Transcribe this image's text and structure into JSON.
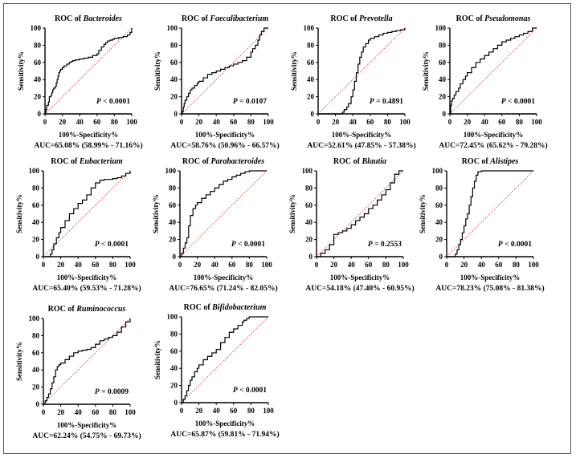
{
  "colors": {
    "curve": "#000000",
    "reference": "#e03030",
    "axis": "#000000",
    "frame": "#555555"
  },
  "chart_data": [
    {
      "type": "line",
      "title_prefix": "ROC of ",
      "title_name": "Bacteroides",
      "xlabel": "100%-Specificity%",
      "ylabel": "Sensitivity%",
      "xlim": [
        0,
        100
      ],
      "ylim": [
        0,
        100
      ],
      "xticks": [
        "0",
        "20",
        "40",
        "60",
        "80",
        "100"
      ],
      "yticks": [
        "0",
        "20",
        "40",
        "60",
        "80",
        "100"
      ],
      "p_prefix": "P",
      "p_value": " < 0.0001",
      "auc": "AUC=65.08% (58.99% - 71.16%)",
      "x": [
        0,
        1,
        2,
        2,
        4,
        5,
        7,
        8,
        9,
        10,
        12,
        13,
        14,
        15,
        16,
        17,
        18,
        20,
        22,
        25,
        28,
        30,
        32,
        35,
        40,
        45,
        50,
        55,
        60,
        62,
        65,
        68,
        70,
        72,
        75,
        78,
        80,
        85,
        90,
        95,
        98,
        100,
        100
      ],
      "y": [
        0,
        5,
        5,
        10,
        14,
        20,
        22,
        25,
        28,
        30,
        32,
        36,
        40,
        44,
        48,
        50,
        52,
        54,
        56,
        58,
        60,
        61,
        62,
        63,
        64,
        65,
        66,
        68,
        70,
        74,
        78,
        81,
        83,
        85,
        86,
        87,
        88,
        89,
        90,
        92,
        95,
        96,
        100
      ],
      "reference_line": [
        [
          0,
          0
        ],
        [
          100,
          100
        ]
      ]
    },
    {
      "type": "line",
      "title_prefix": "ROC of ",
      "title_name": "Faecalibacterium",
      "xlabel": "100%-Specificity%",
      "ylabel": "Sensitivity%",
      "xlim": [
        0,
        100
      ],
      "ylim": [
        0,
        100
      ],
      "xticks": [
        "0",
        "20",
        "40",
        "60",
        "80",
        "100"
      ],
      "yticks": [
        "0",
        "20",
        "40",
        "60",
        "80",
        "100"
      ],
      "p_prefix": "P",
      "p_value": " = 0.0107",
      "auc": "AUC=58.76% (50.96% - 66.57%)",
      "x": [
        0,
        1,
        2,
        3,
        4,
        6,
        8,
        10,
        12,
        15,
        18,
        20,
        25,
        30,
        35,
        40,
        45,
        50,
        55,
        60,
        65,
        70,
        75,
        80,
        82,
        85,
        88,
        90,
        92,
        95,
        100
      ],
      "y": [
        0,
        3,
        8,
        12,
        16,
        20,
        24,
        28,
        30,
        33,
        36,
        38,
        42,
        46,
        48,
        50,
        52,
        54,
        56,
        58,
        60,
        62,
        66,
        72,
        76,
        80,
        86,
        92,
        96,
        100,
        100
      ],
      "reference_line": [
        [
          0,
          0
        ],
        [
          100,
          100
        ]
      ]
    },
    {
      "type": "line",
      "title_prefix": "ROC of ",
      "title_name": "Prevotella",
      "xlabel": "100%-Specificity%",
      "ylabel": "Sensitivity%",
      "xlim": [
        0,
        100
      ],
      "ylim": [
        0,
        100
      ],
      "xticks": [
        "0",
        "20",
        "40",
        "60",
        "80",
        "100"
      ],
      "yticks": [
        "0",
        "20",
        "40",
        "60",
        "80",
        "100"
      ],
      "p_prefix": "P",
      "p_value": " = 0.4891",
      "auc": "AUC=52.61% (47.85% - 57.38%)",
      "x": [
        0,
        10,
        20,
        25,
        28,
        30,
        33,
        35,
        38,
        40,
        42,
        44,
        46,
        48,
        50,
        52,
        55,
        58,
        60,
        65,
        70,
        75,
        80,
        85,
        90,
        95,
        100
      ],
      "y": [
        0,
        0,
        0,
        0,
        2,
        5,
        8,
        12,
        20,
        28,
        38,
        48,
        58,
        66,
        72,
        78,
        82,
        86,
        88,
        90,
        92,
        94,
        95,
        96,
        97,
        98,
        100
      ],
      "reference_line": [
        [
          0,
          0
        ],
        [
          100,
          100
        ]
      ]
    },
    {
      "type": "line",
      "title_prefix": "ROC of ",
      "title_name": "Pseudomonas",
      "xlabel": "100%-Specificity%",
      "ylabel": "Sensitivity%",
      "xlim": [
        0,
        100
      ],
      "ylim": [
        0,
        100
      ],
      "xticks": [
        "0",
        "20",
        "40",
        "60",
        "80",
        "100"
      ],
      "yticks": [
        "0",
        "20",
        "40",
        "60",
        "80",
        "100"
      ],
      "p_prefix": "P",
      "p_value": " < 0.0001",
      "auc": "AUC=72.45% (65.62% - 79.28%)",
      "x": [
        0,
        1,
        2,
        3,
        5,
        7,
        10,
        12,
        15,
        18,
        20,
        25,
        30,
        35,
        40,
        45,
        50,
        55,
        60,
        65,
        70,
        75,
        80,
        85,
        90,
        95,
        100
      ],
      "y": [
        0,
        10,
        15,
        18,
        22,
        26,
        30,
        35,
        40,
        44,
        48,
        54,
        60,
        64,
        68,
        72,
        76,
        80,
        84,
        86,
        88,
        90,
        92,
        94,
        96,
        100,
        100
      ],
      "reference_line": [
        [
          0,
          0
        ],
        [
          100,
          100
        ]
      ]
    },
    {
      "type": "line",
      "title_prefix": "ROC of ",
      "title_name": "Eubacterium",
      "xlabel": "100%-Specificity%",
      "ylabel": "Sensitivity%",
      "xlim": [
        0,
        100
      ],
      "ylim": [
        0,
        100
      ],
      "xticks": [
        "0",
        "20",
        "40",
        "60",
        "80",
        "100"
      ],
      "yticks": [
        "0",
        "20",
        "40",
        "60",
        "80",
        "100"
      ],
      "p_prefix": "P",
      "p_value": " < 0.0001",
      "auc": "AUC=65.40% (59.53% - 71.28%)",
      "x": [
        0,
        5,
        8,
        10,
        12,
        15,
        18,
        20,
        25,
        30,
        35,
        40,
        45,
        50,
        55,
        60,
        65,
        70,
        75,
        80,
        85,
        90,
        95,
        100
      ],
      "y": [
        0,
        0,
        3,
        8,
        15,
        22,
        28,
        34,
        42,
        50,
        56,
        62,
        66,
        72,
        80,
        86,
        89,
        90,
        90,
        91,
        92,
        94,
        97,
        100
      ],
      "reference_line": [
        [
          0,
          0
        ],
        [
          100,
          100
        ]
      ]
    },
    {
      "type": "line",
      "title_prefix": "ROC of ",
      "title_name": "Parabacteroides",
      "xlabel": "100%-Specificity%",
      "ylabel": "Sensitivity%",
      "xlim": [
        0,
        100
      ],
      "ylim": [
        0,
        100
      ],
      "xticks": [
        "0",
        "20",
        "40",
        "60",
        "80",
        "100"
      ],
      "yticks": [
        "0",
        "20",
        "40",
        "60",
        "80",
        "100"
      ],
      "p_prefix": "P",
      "p_value": " < 0.0001",
      "auc": "AUC=76.65% (71.24% - 82.05%)",
      "x": [
        0,
        2,
        4,
        6,
        8,
        10,
        12,
        15,
        18,
        20,
        25,
        30,
        35,
        40,
        45,
        50,
        55,
        60,
        65,
        70,
        75,
        80,
        85,
        90,
        100
      ],
      "y": [
        0,
        4,
        10,
        16,
        22,
        36,
        48,
        56,
        60,
        63,
        68,
        72,
        76,
        80,
        84,
        88,
        90,
        93,
        95,
        97,
        99,
        100,
        100,
        100,
        100
      ],
      "reference_line": [
        [
          0,
          0
        ],
        [
          100,
          100
        ]
      ]
    },
    {
      "type": "line",
      "title_prefix": "ROC of ",
      "title_name": "Blautia",
      "xlabel": "100%-Specificity%",
      "ylabel": "Sensitivity%",
      "xlim": [
        0,
        100
      ],
      "ylim": [
        0,
        100
      ],
      "xticks": [
        "0",
        "20",
        "40",
        "60",
        "80",
        "100"
      ],
      "yticks": [
        "0",
        "20",
        "40",
        "60",
        "80",
        "100"
      ],
      "p_prefix": "P",
      "p_value": " = 0.2553",
      "auc": "AUC=54.18% (47.40% - 60.95%)",
      "x": [
        0,
        5,
        10,
        15,
        20,
        25,
        30,
        35,
        40,
        45,
        50,
        55,
        60,
        65,
        70,
        75,
        80,
        85,
        90,
        95,
        100
      ],
      "y": [
        0,
        4,
        8,
        14,
        26,
        28,
        30,
        33,
        37,
        42,
        46,
        50,
        56,
        60,
        66,
        72,
        78,
        86,
        96,
        100,
        100
      ],
      "reference_line": [
        [
          0,
          0
        ],
        [
          100,
          100
        ]
      ]
    },
    {
      "type": "line",
      "title_prefix": "ROC of ",
      "title_name": "Alistipes",
      "xlabel": "100%-Specificity%",
      "ylabel": "Sensitivity%",
      "xlim": [
        0,
        100
      ],
      "ylim": [
        0,
        100
      ],
      "xticks": [
        "0",
        "20",
        "40",
        "60",
        "80",
        "100"
      ],
      "yticks": [
        "0",
        "20",
        "40",
        "60",
        "80",
        "100"
      ],
      "p_prefix": "P",
      "p_value": " < 0.0001",
      "auc": "AUC=78.23% (75.08% - 81.38%)",
      "x": [
        0,
        8,
        10,
        12,
        14,
        16,
        18,
        20,
        22,
        24,
        26,
        28,
        30,
        32,
        34,
        36,
        40,
        60,
        80,
        100
      ],
      "y": [
        0,
        0,
        3,
        8,
        14,
        20,
        28,
        36,
        44,
        50,
        60,
        70,
        80,
        88,
        95,
        99,
        100,
        100,
        100,
        100
      ],
      "reference_line": [
        [
          0,
          0
        ],
        [
          100,
          100
        ]
      ]
    },
    {
      "type": "line",
      "title_prefix": "ROC of ",
      "title_name": "Ruminococcus",
      "xlabel": "100%-Specificity%",
      "ylabel": "Sensitivity%",
      "xlim": [
        0,
        100
      ],
      "ylim": [
        0,
        100
      ],
      "xticks": [
        "0",
        "20",
        "40",
        "60",
        "80",
        "100"
      ],
      "yticks": [
        "0",
        "20",
        "40",
        "60",
        "80",
        "100"
      ],
      "p_prefix": "P",
      "p_value": " = 0.0009",
      "auc": "AUC=62.24% (54.75% - 69.73%)",
      "x": [
        0,
        2,
        4,
        6,
        8,
        10,
        12,
        14,
        16,
        18,
        20,
        25,
        30,
        35,
        40,
        45,
        50,
        55,
        60,
        65,
        70,
        75,
        80,
        85,
        90,
        95,
        100
      ],
      "y": [
        0,
        4,
        8,
        12,
        18,
        25,
        32,
        40,
        44,
        46,
        48,
        52,
        56,
        60,
        62,
        63,
        64,
        66,
        70,
        74,
        76,
        78,
        80,
        84,
        90,
        96,
        100
      ],
      "reference_line": [
        [
          0,
          0
        ],
        [
          100,
          100
        ]
      ]
    },
    {
      "type": "line",
      "title_prefix": "ROC of ",
      "title_name": "Bifidobacterium",
      "xlabel": "100%-Specificity%",
      "ylabel": "Sensitivity%",
      "xlim": [
        0,
        100
      ],
      "ylim": [
        0,
        100
      ],
      "xticks": [
        "0",
        "20",
        "40",
        "60",
        "80",
        "100"
      ],
      "yticks": [
        "0",
        "20",
        "40",
        "60",
        "80",
        "100"
      ],
      "p_prefix": "P",
      "p_value": " < 0.0001",
      "auc": "AUC=65.87% (59.81% - 71.94%)",
      "x": [
        0,
        2,
        4,
        6,
        8,
        10,
        12,
        15,
        18,
        20,
        25,
        30,
        35,
        40,
        45,
        50,
        55,
        60,
        65,
        70,
        72,
        75,
        78,
        80,
        85,
        90,
        100
      ],
      "y": [
        0,
        4,
        8,
        14,
        20,
        26,
        30,
        36,
        40,
        44,
        50,
        54,
        58,
        62,
        70,
        76,
        82,
        86,
        90,
        94,
        96,
        98,
        100,
        100,
        100,
        100,
        100
      ],
      "reference_line": [
        [
          0,
          0
        ],
        [
          100,
          100
        ]
      ]
    }
  ]
}
